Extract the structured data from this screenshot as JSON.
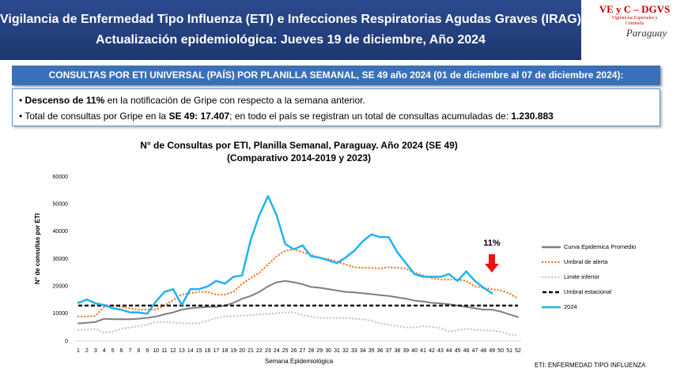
{
  "header": {
    "title": "Vigilancia de Enfermedad Tipo Influenza (ETI) e Infecciones Respiratorias Agudas Graves (IRAG)",
    "subtitle": "Actualización epidemiológica: Jueves 19 de diciembre, Año 2024"
  },
  "logo": {
    "name": "VE y C – DGVS",
    "tagline": [
      "Vigilancias Especiales y",
      "Centinela"
    ],
    "country": "Paraguay"
  },
  "banner": "CONSULTAS POR ETI UNIVERSAL (PAÍS) POR PLANILLA SEMANAL, SE 49 año 2024 (01 de diciembre al 07 de diciembre 2024):",
  "bullets": [
    [
      {
        "text": "Descenso de 11%",
        "bold": true
      },
      {
        "text": " en la notificación de Gripe con respecto a la semana anterior.",
        "bold": false
      }
    ],
    [
      {
        "text": "Total de consultas por Gripe en la ",
        "bold": false
      },
      {
        "text": "SE 49: 17.407",
        "bold": true
      },
      {
        "text": "; en todo el país se registran un total de consultas acumuladas de: ",
        "bold": false
      },
      {
        "text": "1.230.883",
        "bold": true
      }
    ]
  ],
  "chart_data": {
    "type": "line",
    "title": "N° de Consultas por ETI, Planilla Semanal, Paraguay. Año 2024  (SE 49)",
    "subtitle": "(Comparativo 2014-2019 y 2023)",
    "x_label": "Semana Epidemiológica",
    "y_label": "N° de consultas por ETI",
    "annotation": "11%",
    "note": "ETI: ENFERMEDAD TIPO INFLUENZA",
    "x": [
      1,
      2,
      3,
      4,
      5,
      6,
      7,
      8,
      9,
      10,
      11,
      12,
      13,
      14,
      15,
      16,
      17,
      18,
      19,
      20,
      21,
      22,
      23,
      24,
      25,
      26,
      27,
      28,
      29,
      30,
      31,
      32,
      33,
      34,
      35,
      36,
      37,
      38,
      39,
      40,
      41,
      42,
      43,
      44,
      45,
      46,
      47,
      48,
      49,
      50,
      51,
      52
    ],
    "xlim": [
      1,
      52
    ],
    "ylim": [
      0,
      60000
    ],
    "yticks": [
      0,
      10000,
      20000,
      30000,
      40000,
      50000,
      60000
    ],
    "grid": false,
    "series": [
      {
        "name": "Curva Epidemica Promedio",
        "color": "#7f7f7f",
        "style": "solid",
        "values": [
          6500,
          6700,
          7000,
          8200,
          8000,
          8000,
          8000,
          8200,
          8500,
          9000,
          9800,
          10500,
          11500,
          12000,
          12300,
          12500,
          12500,
          13000,
          14000,
          15500,
          16500,
          18000,
          20000,
          21500,
          22000,
          21500,
          20800,
          19800,
          19500,
          19000,
          18500,
          18000,
          17800,
          17500,
          17200,
          16800,
          16500,
          16000,
          15500,
          14800,
          14500,
          14000,
          13800,
          13500,
          13000,
          12500,
          12000,
          11500,
          11500,
          10800,
          9800,
          8800
        ]
      },
      {
        "name": "Umbral de alerta",
        "color": "#ed7d31",
        "style": "dotted",
        "values": [
          9000,
          9000,
          9200,
          12500,
          13000,
          12500,
          12000,
          11500,
          11500,
          11500,
          13000,
          15000,
          17000,
          17500,
          18000,
          18000,
          17000,
          17000,
          18000,
          21000,
          23000,
          25000,
          28000,
          31000,
          33000,
          33500,
          32500,
          31500,
          30500,
          30000,
          29000,
          28000,
          27000,
          26800,
          26800,
          26500,
          27000,
          26800,
          26500,
          25000,
          24000,
          23000,
          22500,
          22500,
          22500,
          22000,
          20000,
          19500,
          19000,
          18500,
          17500,
          15500
        ]
      },
      {
        "name": "Limite inferior",
        "color": "#c8c8c8",
        "style": "dotted",
        "values": [
          4000,
          4200,
          4500,
          3000,
          3500,
          4500,
          5000,
          5500,
          6000,
          7000,
          7000,
          6800,
          6500,
          6500,
          6500,
          7500,
          8500,
          9000,
          9200,
          9300,
          9500,
          9800,
          10000,
          10200,
          10500,
          10500,
          9500,
          9000,
          8500,
          8500,
          8500,
          8500,
          8200,
          8000,
          7500,
          6500,
          6000,
          5500,
          5000,
          5000,
          5500,
          5200,
          4800,
          3500,
          4000,
          4500,
          4200,
          4000,
          3800,
          3500,
          2500,
          2000
        ]
      },
      {
        "name": "Umbral estacional",
        "color": "#000000",
        "style": "dashed",
        "values": [
          13000,
          13000,
          13000,
          13000,
          13000,
          13000,
          13000,
          13000,
          13000,
          13000,
          13000,
          13000,
          13000,
          13000,
          13000,
          13000,
          13000,
          13000,
          13000,
          13000,
          13000,
          13000,
          13000,
          13000,
          13000,
          13000,
          13000,
          13000,
          13000,
          13000,
          13000,
          13000,
          13000,
          13000,
          13000,
          13000,
          13000,
          13000,
          13000,
          13000,
          13000,
          13000,
          13000,
          13000,
          13000,
          13000,
          13000,
          13000,
          13000,
          13000,
          13000,
          13000
        ]
      },
      {
        "name": "2024",
        "color": "#1fb3f0",
        "style": "solid",
        "values": [
          14000,
          15200,
          13800,
          13200,
          12000,
          11500,
          10500,
          10500,
          10000,
          14500,
          18000,
          19000,
          13200,
          19000,
          19000,
          20000,
          22000,
          21000,
          23500,
          24000,
          37000,
          46000,
          53000,
          46000,
          35500,
          33500,
          35000,
          31000,
          30500,
          29500,
          28500,
          30500,
          33000,
          36500,
          39000,
          38000,
          38000,
          32500,
          28500,
          24500,
          23500,
          23500,
          23500,
          24500,
          22000,
          25500,
          22000,
          19500,
          17500,
          null,
          null,
          null
        ]
      }
    ]
  }
}
